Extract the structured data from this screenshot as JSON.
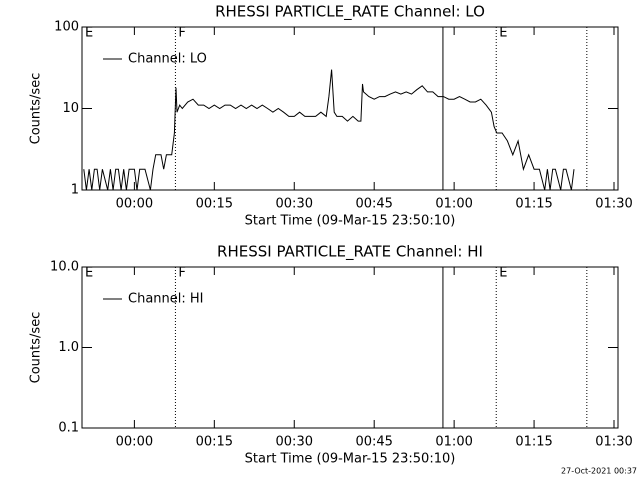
{
  "chart_data": [
    {
      "type": "line",
      "title": "RHESSI PARTICLE_RATE Channel: LO",
      "xlabel": "Start Time (09-Mar-15 23:50:10)",
      "ylabel": "Counts/sec",
      "log_y": true,
      "legend": "upper left",
      "xlim": [
        -9.83,
        90.75
      ],
      "ylim": [
        1,
        100
      ],
      "xticks": [
        {
          "value": 0,
          "label": "00:00"
        },
        {
          "value": 15,
          "label": "00:15"
        },
        {
          "value": 30,
          "label": "00:30"
        },
        {
          "value": 45,
          "label": "00:45"
        },
        {
          "value": 60,
          "label": "01:00"
        },
        {
          "value": 75,
          "label": "01:15"
        },
        {
          "value": 90,
          "label": "01:30"
        }
      ],
      "yticks": [
        1,
        10,
        100
      ],
      "markers": [
        {
          "x": -9.83,
          "label": "E",
          "style": "dotted"
        },
        {
          "x": 7.7,
          "label": "F",
          "style": "dotted"
        },
        {
          "x": 57.9,
          "style": "solid"
        },
        {
          "x": 67.9,
          "label": "E",
          "style": "dotted"
        },
        {
          "x": 84.9,
          "style": "dotted"
        }
      ],
      "series": [
        {
          "name": "Channel: LO",
          "color": "#000000",
          "x": [
            -9.5,
            -9,
            -8.5,
            -8,
            -7.5,
            -7,
            -6.5,
            -6,
            -5,
            -4.5,
            -4,
            -3.5,
            -3,
            -2.5,
            -2,
            -1.5,
            -1,
            0,
            0.5,
            1,
            2,
            3,
            3.5,
            4,
            5,
            5.5,
            6,
            7,
            7.5,
            7.8,
            8,
            8.5,
            9,
            10,
            11,
            12,
            13,
            14,
            15,
            16,
            17,
            18,
            19,
            20,
            21,
            22,
            23,
            24,
            25,
            26,
            27,
            28,
            29,
            30,
            31,
            32,
            33,
            34,
            35,
            36,
            36.5,
            37,
            37.5,
            38,
            39,
            40,
            41,
            42,
            42.5,
            42.8,
            43,
            44,
            45,
            46,
            47,
            48,
            49,
            50,
            51,
            52,
            53,
            54,
            55,
            56,
            57,
            58,
            59,
            60,
            61,
            62,
            63,
            64,
            65,
            66,
            67,
            67.5,
            68,
            69,
            70,
            71,
            72,
            72.5,
            73,
            74,
            75,
            76,
            77,
            77.5,
            78,
            78.5,
            79,
            80,
            80.5,
            81,
            82,
            82.5
          ],
          "values": [
            1.8,
            1,
            1.8,
            1,
            1.8,
            1.8,
            1,
            1.8,
            1,
            1.8,
            1,
            1.8,
            1.8,
            1,
            1.8,
            1,
            1.8,
            1.8,
            1,
            1.8,
            1.8,
            1,
            1.8,
            2.7,
            2.7,
            1.8,
            2.7,
            2.7,
            5,
            18,
            9,
            11,
            10,
            12,
            13,
            11,
            11,
            10,
            11,
            10,
            11,
            11,
            10,
            11,
            10,
            11,
            10,
            11,
            10,
            9,
            10,
            9,
            8,
            8,
            9,
            8,
            8,
            8,
            9,
            8,
            14,
            30,
            9,
            8,
            8,
            7,
            8,
            7,
            7,
            20,
            16,
            14,
            13,
            14,
            14,
            15,
            16,
            15,
            16,
            15,
            17,
            19,
            16,
            16,
            14,
            14,
            13,
            13,
            14,
            13,
            12,
            12,
            13,
            11,
            9,
            6,
            5,
            5,
            4,
            2.7,
            4,
            2.7,
            1.8,
            2.7,
            1.8,
            1.8,
            1,
            1.8,
            1,
            1.8,
            1.8,
            1,
            1.8,
            1.8,
            1,
            1.8
          ]
        }
      ]
    },
    {
      "type": "line",
      "title": "RHESSI PARTICLE_RATE Channel: HI",
      "xlabel": "Start Time (09-Mar-15 23:50:10)",
      "ylabel": "Counts/sec",
      "log_y": true,
      "legend": "upper left",
      "xlim": [
        -9.83,
        90.75
      ],
      "ylim": [
        0.1,
        10
      ],
      "xticks": [
        {
          "value": 0,
          "label": "00:00"
        },
        {
          "value": 15,
          "label": "00:15"
        },
        {
          "value": 30,
          "label": "00:30"
        },
        {
          "value": 45,
          "label": "00:45"
        },
        {
          "value": 60,
          "label": "01:00"
        },
        {
          "value": 75,
          "label": "01:15"
        },
        {
          "value": 90,
          "label": "01:30"
        }
      ],
      "yticks": [
        0.1,
        {
          "value": 1,
          "label": "1.0"
        },
        {
          "value": 10,
          "label": "10.0"
        }
      ],
      "markers": [
        {
          "x": -9.83,
          "label": "E",
          "style": "dotted"
        },
        {
          "x": 7.7,
          "label": "F",
          "style": "dotted"
        },
        {
          "x": 57.9,
          "style": "solid"
        },
        {
          "x": 67.9,
          "label": "E",
          "style": "dotted"
        },
        {
          "x": 84.9,
          "style": "dotted"
        }
      ],
      "series": [
        {
          "name": "Channel: HI",
          "color": "#000000"
        }
      ]
    }
  ],
  "footer": "27-Oct-2021 00:37"
}
